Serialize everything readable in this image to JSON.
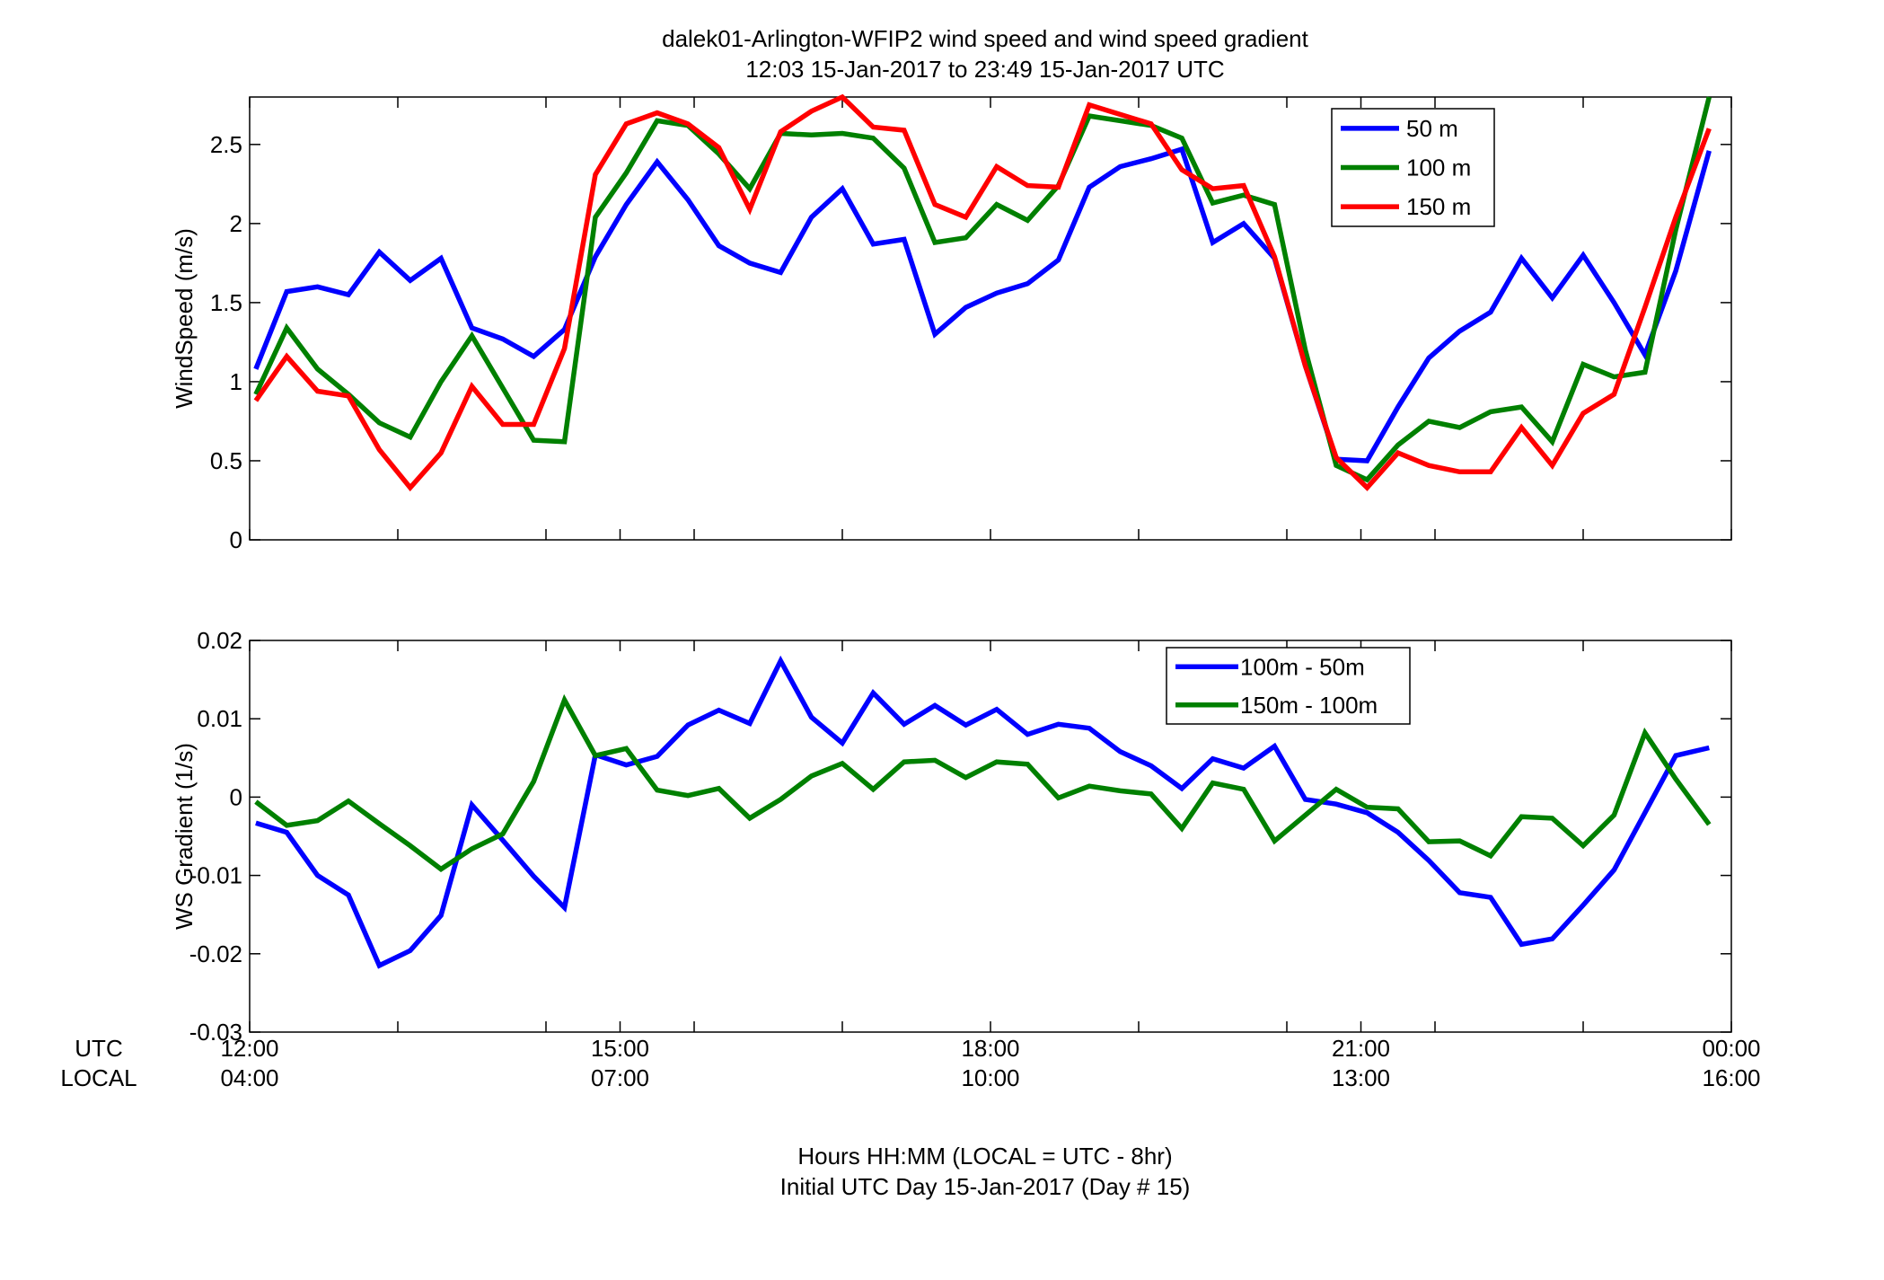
{
  "figure": {
    "title_line1": "dalek01-Arlington-WFIP2  wind speed and wind speed gradient",
    "title_line2": "12:03 15-Jan-2017 to 23:49 15-Jan-2017  UTC",
    "xlabel_line1": "Hours HH:MM  (LOCAL = UTC - 8hr)",
    "xlabel_line2": "Initial UTC Day 15-Jan-2017 (Day # 15)",
    "utc_row_label": "UTC",
    "local_row_label": "LOCAL",
    "utc_ticks": [
      "12:00",
      "15:00",
      "18:00",
      "21:00",
      "00:00"
    ],
    "local_ticks": [
      "04:00",
      "07:00",
      "10:00",
      "13:00",
      "16:00"
    ]
  },
  "chart_data": [
    {
      "type": "line",
      "ylabel": "WindSpeed (m/s)",
      "xlim": [
        12.0,
        24.0
      ],
      "ylim": [
        0,
        2.8
      ],
      "yticks": [
        0,
        0.5,
        1,
        1.5,
        2,
        2.5
      ],
      "ytick_labels": [
        "0",
        "0.5",
        "1",
        "1.5",
        "2",
        "2.5"
      ],
      "xticks": [
        12,
        13.2,
        14.4,
        15,
        15.6,
        16.8,
        18,
        19.2,
        20.4,
        21,
        21.6,
        22.8,
        24
      ],
      "legend_position": "top-right",
      "x": [
        12.05,
        12.3,
        12.55,
        12.8,
        13.05,
        13.3,
        13.55,
        13.8,
        14.05,
        14.3,
        14.55,
        14.8,
        15.05,
        15.3,
        15.55,
        15.8,
        16.05,
        16.3,
        16.55,
        16.8,
        17.05,
        17.3,
        17.55,
        17.8,
        18.05,
        18.3,
        18.55,
        18.8,
        19.05,
        19.3,
        19.55,
        19.8,
        20.05,
        20.3,
        20.55,
        20.8,
        21.05,
        21.3,
        21.55,
        21.8,
        22.05,
        22.3,
        22.55,
        22.8,
        23.05,
        23.3,
        23.55,
        23.82
      ],
      "series": [
        {
          "name": "50 m",
          "color": "#0000ff",
          "values": [
            1.08,
            1.57,
            1.6,
            1.55,
            1.82,
            1.64,
            1.78,
            1.34,
            1.27,
            1.16,
            1.33,
            1.79,
            2.12,
            2.39,
            2.15,
            1.86,
            1.75,
            1.69,
            2.04,
            2.22,
            1.87,
            1.9,
            1.3,
            1.47,
            1.56,
            1.62,
            1.77,
            2.23,
            2.36,
            2.41,
            2.47,
            1.88,
            2.0,
            1.78,
            1.1,
            0.51,
            0.5,
            0.84,
            1.15,
            1.32,
            1.44,
            1.78,
            1.53,
            1.8,
            1.5,
            1.17,
            1.7,
            2.46
          ]
        },
        {
          "name": "100 m",
          "color": "#008000",
          "values": [
            0.92,
            1.34,
            1.08,
            0.92,
            0.74,
            0.65,
            1.0,
            1.29,
            0.96,
            0.63,
            0.62,
            2.04,
            2.32,
            2.65,
            2.62,
            2.44,
            2.22,
            2.57,
            2.56,
            2.57,
            2.54,
            2.35,
            1.88,
            1.91,
            2.12,
            2.02,
            2.24,
            2.68,
            2.65,
            2.62,
            2.54,
            2.13,
            2.18,
            2.12,
            1.2,
            0.47,
            0.38,
            0.6,
            0.75,
            0.71,
            0.81,
            0.84,
            0.62,
            1.11,
            1.03,
            1.06,
            1.96,
            2.8
          ]
        },
        {
          "name": "150 m",
          "color": "#ff0000",
          "values": [
            0.88,
            1.16,
            0.94,
            0.91,
            0.57,
            0.33,
            0.55,
            0.97,
            0.73,
            0.73,
            1.21,
            2.31,
            2.63,
            2.7,
            2.63,
            2.48,
            2.09,
            2.58,
            2.71,
            2.8,
            2.61,
            2.59,
            2.12,
            2.04,
            2.36,
            2.24,
            2.23,
            2.75,
            2.69,
            2.63,
            2.34,
            2.22,
            2.24,
            1.79,
            1.1,
            0.52,
            0.33,
            0.55,
            0.47,
            0.43,
            0.43,
            0.71,
            0.47,
            0.8,
            0.92,
            1.47,
            2.04,
            2.6
          ]
        }
      ]
    },
    {
      "type": "line",
      "ylabel": "WS Gradient (1/s)",
      "xlim": [
        12.0,
        24.0
      ],
      "ylim": [
        -0.03,
        0.02
      ],
      "yticks": [
        -0.03,
        -0.02,
        -0.01,
        0,
        0.01,
        0.02
      ],
      "ytick_labels": [
        "-0.03",
        "-0.02",
        "-0.01",
        "0",
        "0.01",
        "0.02"
      ],
      "xticks": [
        12,
        13.2,
        14.4,
        15,
        15.6,
        16.8,
        18,
        19.2,
        20.4,
        21,
        21.6,
        22.8,
        24
      ],
      "legend_position": "top-right",
      "x": [
        12.05,
        12.3,
        12.55,
        12.8,
        13.05,
        13.3,
        13.55,
        13.8,
        14.05,
        14.3,
        14.55,
        14.8,
        15.05,
        15.3,
        15.55,
        15.8,
        16.05,
        16.3,
        16.55,
        16.8,
        17.05,
        17.3,
        17.55,
        17.8,
        18.05,
        18.3,
        18.55,
        18.8,
        19.05,
        19.3,
        19.55,
        19.8,
        20.05,
        20.3,
        20.55,
        20.8,
        21.05,
        21.3,
        21.55,
        21.8,
        22.05,
        22.3,
        22.55,
        22.8,
        23.05,
        23.3,
        23.55,
        23.82
      ],
      "series": [
        {
          "name": "100m - 50m",
          "color": "#0000ff",
          "values": [
            -0.0033,
            -0.0045,
            -0.01,
            -0.0125,
            -0.0215,
            -0.0196,
            -0.0151,
            -0.001,
            -0.0055,
            -0.0101,
            -0.0141,
            0.0054,
            0.0041,
            0.0052,
            0.0092,
            0.0111,
            0.0094,
            0.0174,
            0.0102,
            0.0069,
            0.0133,
            0.0093,
            0.0117,
            0.0092,
            0.0112,
            0.008,
            0.0093,
            0.0088,
            0.0058,
            0.004,
            0.0011,
            0.0049,
            0.0037,
            0.0065,
            -0.0003,
            -0.0009,
            -0.002,
            -0.0045,
            -0.0081,
            -0.0122,
            -0.0128,
            -0.0188,
            -0.0181,
            -0.0138,
            -0.0093,
            -0.002,
            0.0053,
            0.0063
          ]
        },
        {
          "name": "150m - 100m",
          "color": "#008000",
          "values": [
            -0.0006,
            -0.0036,
            -0.003,
            -0.0005,
            -0.0034,
            -0.0062,
            -0.0092,
            -0.0066,
            -0.0047,
            0.002,
            0.0124,
            0.0053,
            0.0062,
            0.0009,
            0.0002,
            0.0011,
            -0.0027,
            -0.0003,
            0.0027,
            0.0043,
            0.001,
            0.0045,
            0.0047,
            0.0025,
            0.0045,
            0.0042,
            -0.0001,
            0.0014,
            0.0008,
            0.0004,
            -0.004,
            0.0018,
            0.001,
            -0.0056,
            -0.0023,
            0.001,
            -0.0013,
            -0.0015,
            -0.0057,
            -0.0056,
            -0.0075,
            -0.0025,
            -0.0027,
            -0.0062,
            -0.0023,
            0.0082,
            0.0023,
            -0.0035
          ]
        }
      ]
    }
  ]
}
